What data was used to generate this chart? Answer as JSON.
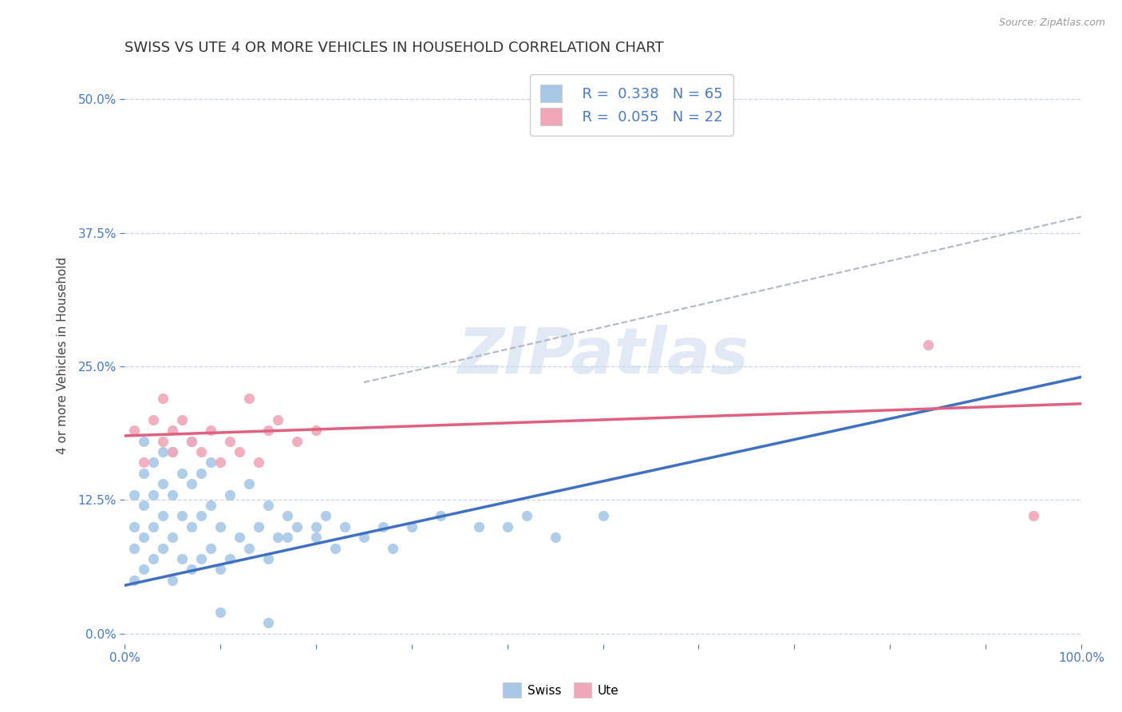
{
  "title": "SWISS VS UTE 4 OR MORE VEHICLES IN HOUSEHOLD CORRELATION CHART",
  "source": "Source: ZipAtlas.com",
  "ylabel": "4 or more Vehicles in Household",
  "xlim": [
    0,
    100
  ],
  "ylim": [
    -1,
    53
  ],
  "yticks": [
    0,
    12.5,
    25.0,
    37.5,
    50.0
  ],
  "background_color": "#ffffff",
  "grid_color": "#c8d4e8",
  "watermark_text": "ZIPatlas",
  "legend_r_swiss": "R =  0.338",
  "legend_n_swiss": "N = 65",
  "legend_r_ute": "R =  0.055",
  "legend_n_ute": "N = 22",
  "swiss_color": "#a8c8e8",
  "ute_color": "#f0a8b8",
  "swiss_line_color": "#4070c0",
  "ute_line_color": "#e06080",
  "dash_line_color": "#b0b8c8",
  "swiss_x": [
    1,
    1,
    1,
    1,
    2,
    2,
    2,
    2,
    2,
    3,
    3,
    3,
    3,
    4,
    4,
    4,
    4,
    5,
    5,
    5,
    5,
    6,
    6,
    6,
    7,
    7,
    7,
    7,
    8,
    8,
    8,
    9,
    9,
    9,
    10,
    10,
    11,
    11,
    12,
    13,
    13,
    14,
    15,
    15,
    16,
    17,
    18,
    20,
    21,
    22,
    23,
    25,
    27,
    30,
    33,
    37,
    40,
    42,
    45,
    50,
    28,
    20,
    17,
    15,
    10
  ],
  "swiss_y": [
    5,
    8,
    10,
    13,
    6,
    9,
    12,
    15,
    18,
    7,
    10,
    13,
    16,
    8,
    11,
    14,
    17,
    5,
    9,
    13,
    17,
    7,
    11,
    15,
    6,
    10,
    14,
    18,
    7,
    11,
    15,
    8,
    12,
    16,
    6,
    10,
    7,
    13,
    9,
    8,
    14,
    10,
    7,
    12,
    9,
    11,
    10,
    9,
    11,
    8,
    10,
    9,
    10,
    10,
    11,
    10,
    10,
    11,
    9,
    11,
    8,
    10,
    9,
    1,
    2
  ],
  "ute_x": [
    1,
    2,
    3,
    4,
    4,
    5,
    5,
    6,
    7,
    8,
    9,
    10,
    11,
    12,
    13,
    14,
    15,
    16,
    18,
    20,
    84,
    95
  ],
  "ute_y": [
    19,
    16,
    20,
    18,
    22,
    17,
    19,
    20,
    18,
    17,
    19,
    16,
    18,
    17,
    22,
    16,
    19,
    20,
    18,
    19,
    27,
    11
  ],
  "swiss_trend_x0": 0,
  "swiss_trend_y0": 4.5,
  "swiss_trend_x1": 100,
  "swiss_trend_y1": 24.0,
  "ute_trend_x0": 0,
  "ute_trend_y0": 18.5,
  "ute_trend_x1": 100,
  "ute_trend_y1": 21.5,
  "dash_x0": 25,
  "dash_y0": 23.5,
  "dash_x1": 100,
  "dash_y1": 39.0
}
